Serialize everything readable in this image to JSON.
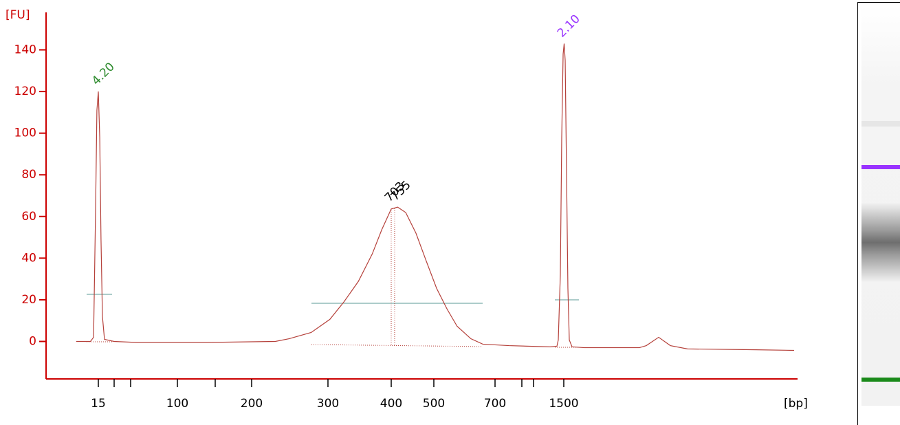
{
  "chart_data": {
    "type": "line",
    "ylabel": "[FU]",
    "xlabel": "[bp]",
    "x": [
      1,
      10,
      12,
      13.3,
      14.1,
      15,
      15.9,
      16.7,
      17.6,
      18.9,
      25,
      57,
      138,
      231,
      249,
      278,
      303,
      325,
      348,
      370,
      385,
      400,
      415,
      434,
      458,
      482,
      509,
      543,
      576,
      621,
      660,
      777,
      1273,
      1386,
      1409,
      1443,
      1466,
      1489,
      1506,
      1523,
      1545,
      1568,
      1591,
      1636,
      1841,
      2750,
      2864,
      3068,
      3261,
      3545,
      4682,
      5307
    ],
    "values": [
      0,
      0,
      2,
      65,
      111,
      120,
      98,
      49,
      12,
      1,
      0,
      -0.5,
      -0.5,
      0,
      1.3,
      4.3,
      10.6,
      18.9,
      28.8,
      42,
      53.6,
      63.6,
      64.5,
      61.9,
      52,
      38.7,
      25.5,
      15.6,
      7.3,
      1.3,
      -1.3,
      -2,
      -2.6,
      -2.3,
      0.7,
      32,
      98,
      138,
      143,
      135,
      82,
      25.5,
      0.7,
      -2.6,
      -3,
      -3,
      -2,
      2,
      -2,
      -3.6,
      -4,
      -4.3
    ],
    "color": "#b5403a",
    "axis_color": "#cc0000",
    "xscale": "ladder",
    "xticks": [
      15,
      {
        "value": 25,
        "label": null
      },
      {
        "value": 50,
        "label": null
      },
      100,
      {
        "value": 150,
        "label": null
      },
      200,
      300,
      400,
      500,
      700,
      {
        "value": 850,
        "label": null
      },
      {
        "value": 1000,
        "label": null
      },
      1500
    ],
    "ylim": [
      -18,
      158
    ],
    "yticks": [
      0,
      20,
      40,
      60,
      80,
      100,
      120,
      140
    ],
    "annotations": [
      {
        "text": "4.20",
        "x": 15,
        "y": 120,
        "color": "#2e8b2e"
      },
      {
        "text": "703",
        "x": 400,
        "y": 64,
        "color": "#000000"
      },
      {
        "text": "755",
        "x": 414,
        "y": 64.5,
        "color": "#000000"
      },
      {
        "text": "2.10",
        "x": 1500,
        "y": 143,
        "color": "#9933ff"
      }
    ]
  }
}
